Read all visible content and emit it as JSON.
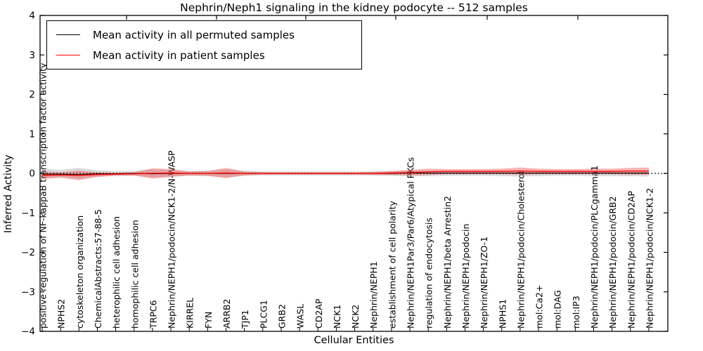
{
  "figure": {
    "title": "Nephrin/Neph1 signaling in the kidney podocyte -- 512 samples",
    "xlabel": "Cellular Entities",
    "ylabel": "Inferred Activity"
  },
  "legend": {
    "items": [
      {
        "label": "Mean activity in all permuted samples",
        "color": "#000000"
      },
      {
        "label": "Mean activity in patient samples",
        "color": "#ff0000"
      }
    ]
  },
  "chart_data": {
    "type": "line",
    "title": "Nephrin/Neph1 signaling in the kidney podocyte -- 512 samples",
    "xlabel": "Cellular Entities",
    "ylabel": "Inferred Activity",
    "ylim": [
      -4,
      4
    ],
    "yticks": [
      4,
      3,
      2,
      1,
      0,
      -1,
      -2,
      -3,
      -4
    ],
    "grid": false,
    "legend_position": "upper left",
    "zero_line": {
      "style": "dotted",
      "color": "#000000",
      "y": 0
    },
    "categories": [
      "positive regulation of NF-kappaB transcription factor activity",
      "NPHS2",
      "cytoskeleton organization",
      "ChemicalAbstracts:57-88-5",
      "heterophilic cell adhesion",
      "homophilic cell adhesion",
      "TRPC6",
      "Nephrin/NEPH1/podocin/NCK1-2/N-WASP",
      "KIRREL",
      "FYN",
      "ARRB2",
      "TJP1",
      "PLCG1",
      "GRB2",
      "WASL",
      "CD2AP",
      "NCK1",
      "NCK2",
      "Nephrin/NEPH1",
      "establishment of cell polarity",
      "Nephrin/NEPH1Par3/Par6/Atypical PKCs",
      "regulation of endocytosis",
      "Nephrin/NEPH1/beta Arrestin2",
      "Nephrin/NEPH1/podocin",
      "Nephrin/NEPH1/ZO-1",
      "NPHS1",
      "Nephrin/NEPH1/podocin/Cholesterol",
      "mol:Ca2+",
      "mol:DAG",
      "mol:IP3",
      "Nephrin/NEPH1/podocin/PLCgamma1",
      "Nephrin/NEPH1/podocin/GRB2",
      "Nephrin/NEPH1/podocin/CD2AP",
      "Nephrin/NEPH1/podocin/NCK1-2"
    ],
    "series": [
      {
        "name": "Mean activity in all permuted samples",
        "color": "#000000",
        "style": "solid",
        "values": [
          -0.02,
          -0.02,
          -0.03,
          -0.01,
          -0.01,
          0,
          -0.01,
          0,
          0,
          0,
          0,
          0,
          0,
          0,
          0,
          0,
          0,
          0,
          0,
          0,
          0.01,
          0.01,
          0.01,
          0.01,
          0.01,
          0.01,
          0.01,
          0.01,
          0.01,
          0.01,
          0.01,
          0.01,
          0.01,
          0.01
        ]
      },
      {
        "name": "Mean activity in patient samples",
        "color": "#ff0000",
        "style": "solid",
        "values": [
          -0.05,
          -0.04,
          -0.05,
          -0.03,
          -0.02,
          -0.01,
          0,
          0.01,
          0,
          0,
          0.01,
          0,
          0,
          0,
          0,
          0,
          0,
          0,
          0,
          0.01,
          0.02,
          0.04,
          0.05,
          0.05,
          0.05,
          0.05,
          0.06,
          0.05,
          0.05,
          0.05,
          0.05,
          0.05,
          0.06,
          0.06
        ]
      }
    ],
    "bands": [
      {
        "name": "permuted samples spread",
        "color": "#999999",
        "opacity": 0.35,
        "upper": [
          0.12,
          0.09,
          0.14,
          0.08,
          0.06,
          0.06,
          0.1,
          0.08,
          0.06,
          0.07,
          0.1,
          0.06,
          0.05,
          0.05,
          0.05,
          0.05,
          0.05,
          0.05,
          0.05,
          0.06,
          0.07,
          0.07,
          0.06,
          0.06,
          0.06,
          0.07,
          0.08,
          0.07,
          0.06,
          0.06,
          0.07,
          0.07,
          0.07,
          0.08
        ],
        "lower": [
          -0.12,
          -0.09,
          -0.14,
          -0.08,
          -0.06,
          -0.06,
          -0.1,
          -0.08,
          -0.06,
          -0.07,
          -0.1,
          -0.06,
          -0.05,
          -0.05,
          -0.05,
          -0.05,
          -0.05,
          -0.05,
          -0.05,
          -0.06,
          -0.07,
          -0.07,
          -0.06,
          -0.06,
          -0.06,
          -0.07,
          -0.08,
          -0.07,
          -0.06,
          -0.06,
          -0.07,
          -0.07,
          -0.07,
          -0.08
        ]
      },
      {
        "name": "patient samples spread",
        "color": "#f04040",
        "opacity": 0.4,
        "upper": [
          0.04,
          0.03,
          0.07,
          0.03,
          0.02,
          0.03,
          0.13,
          0.11,
          0.05,
          0.06,
          0.14,
          0.05,
          0.03,
          0.03,
          0.03,
          0.03,
          0.03,
          0.03,
          0.04,
          0.06,
          0.09,
          0.12,
          0.11,
          0.11,
          0.11,
          0.12,
          0.15,
          0.12,
          0.11,
          0.11,
          0.12,
          0.12,
          0.14,
          0.15
        ],
        "lower": [
          -0.14,
          -0.11,
          -0.17,
          -0.09,
          -0.06,
          -0.05,
          -0.13,
          -0.09,
          -0.05,
          -0.06,
          -0.12,
          -0.05,
          -0.03,
          -0.03,
          -0.03,
          -0.03,
          -0.03,
          -0.03,
          -0.04,
          -0.04,
          -0.05,
          -0.04,
          -0.02,
          -0.02,
          -0.02,
          -0.02,
          -0.03,
          -0.02,
          -0.02,
          -0.02,
          -0.02,
          -0.02,
          -0.03,
          -0.03
        ]
      }
    ]
  }
}
